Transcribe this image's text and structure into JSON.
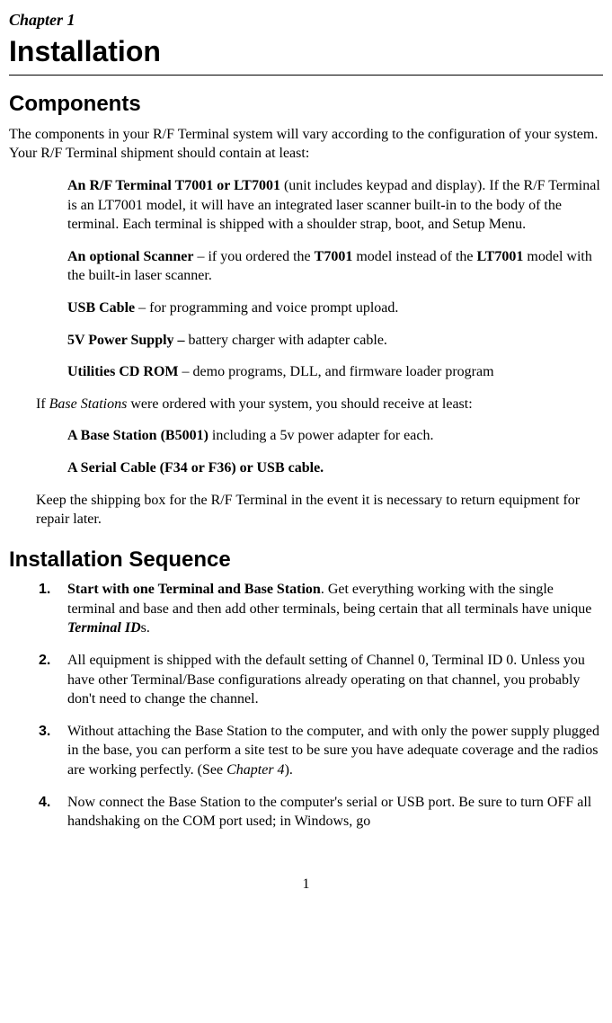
{
  "chapter_label": "Chapter 1",
  "title": "Installation",
  "sec1": {
    "heading": "Components",
    "intro": "The components in your R/F Terminal system will vary according to the configuration of your system.  Your R/F Terminal shipment should contain at least:",
    "items": {
      "i1": {
        "b": "An R/F Terminal T7001 or LT7001",
        "t": " (unit includes keypad and display).  If the R/F Terminal is an LT7001 model, it will have an integrated laser scanner built-in to the body of the terminal. Each terminal is shipped with a shoulder strap, boot, and Setup Menu."
      },
      "i2": {
        "b1": "An optional Scanner",
        "t1": " – if you ordered the ",
        "b2": "T7001",
        "t2": " model instead of the ",
        "b3": "LT7001",
        "t3": " model with the built-in laser scanner."
      },
      "i3": {
        "b": "USB Cable",
        "t": " – for programming and voice prompt upload."
      },
      "i4": {
        "b": "5V Power Supply –",
        "t": " battery charger with adapter cable."
      },
      "i5": {
        "b": "Utilities CD ROM",
        "t": " – demo programs, DLL, and firmware loader program"
      }
    },
    "mid1_a": "If ",
    "mid1_i": "Base Stations",
    "mid1_b": " were ordered with your system, you should receive at least:",
    "items2": {
      "i6": {
        "b": "A Base Station (B5001)",
        "t": " including a 5v power adapter for each."
      },
      "i7": {
        "b": "A Serial Cable (F34 or F36) or USB cable."
      }
    },
    "outro": "Keep the shipping box for the R/F Terminal in the event it is necessary to return equipment for repair later."
  },
  "sec2": {
    "heading": "Installation Sequence",
    "steps": {
      "s1": {
        "n": "1.",
        "b": "Start with one Terminal and Base Station",
        "t1": ". Get everything working with the single terminal and base and then add other terminals, being certain that all terminals have unique ",
        "bi": "Terminal ID",
        "t2": "s."
      },
      "s2": {
        "n": "2.",
        "t": "All equipment is shipped with the default setting of Channel 0, Terminal ID 0.  Unless you have other Terminal/Base configurations already operating on that channel, you probably don't need to change the channel."
      },
      "s3": {
        "n": "3.",
        "t1": "Without attaching the Base Station to the computer, and with only the power supply plugged in the base, you can perform a site test to be sure you have adequate coverage and the radios are working perfectly. (See ",
        "i": "Chapter 4",
        "t2": ")."
      },
      "s4": {
        "n": "4.",
        "t": "Now connect the Base Station to the computer's serial or USB port. Be sure to turn OFF all handshaking on the COM port used; in Windows, go"
      }
    }
  },
  "page_number": "1"
}
